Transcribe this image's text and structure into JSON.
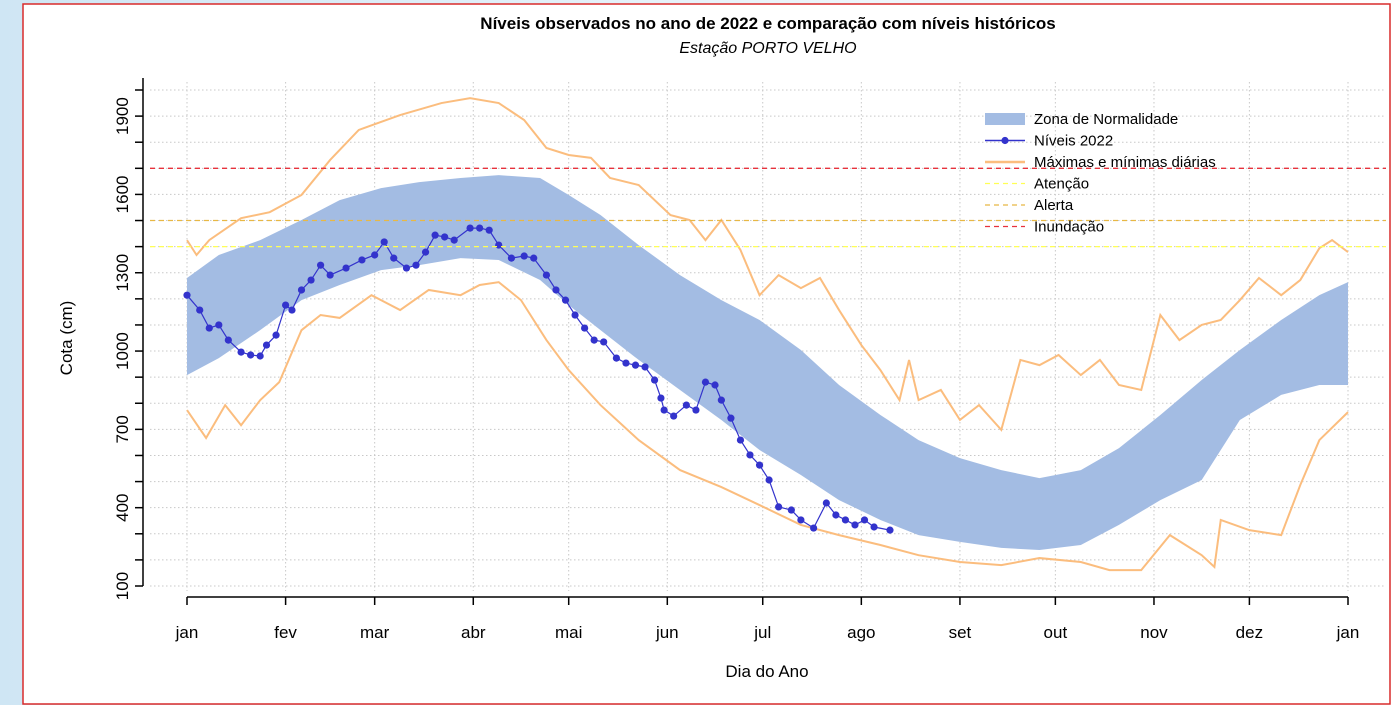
{
  "chart_data": {
    "type": "line",
    "title": "Níveis observados no ano de 2022 e comparação com níveis históricos",
    "subtitle": "Estação PORTO VELHO",
    "x_label": "Dia do Ano",
    "y_label": "Cota (cm)",
    "xlim": [
      1,
      366
    ],
    "xticks": [
      {
        "value": 1,
        "label": "jan"
      },
      {
        "value": 32,
        "label": "fev"
      },
      {
        "value": 60,
        "label": "mar"
      },
      {
        "value": 91,
        "label": "abr"
      },
      {
        "value": 121,
        "label": "mai"
      },
      {
        "value": 152,
        "label": "jun"
      },
      {
        "value": 182,
        "label": "jul"
      },
      {
        "value": 213,
        "label": "ago"
      },
      {
        "value": 244,
        "label": "set"
      },
      {
        "value": 274,
        "label": "out"
      },
      {
        "value": 305,
        "label": "nov"
      },
      {
        "value": 335,
        "label": "dez"
      },
      {
        "value": 366,
        "label": "jan"
      }
    ],
    "ylim": [
      100,
      2000
    ],
    "yticks": [
      100,
      400,
      700,
      1000,
      1300,
      1600,
      1900
    ],
    "yminor_ticks": [
      200,
      300,
      500,
      600,
      800,
      900,
      1100,
      1200,
      1400,
      1500,
      1700,
      1800,
      2000
    ],
    "grid": true,
    "legend": "top-right",
    "bands": [
      {
        "name": "Zona de Normalidade",
        "color": "#a3bce3",
        "x": [
          1,
          11,
          24,
          37,
          49,
          62,
          74,
          87,
          99,
          112,
          121,
          131,
          143,
          156,
          169,
          181,
          194,
          206,
          219,
          231,
          244,
          257,
          269,
          282,
          294,
          307,
          320,
          332,
          345,
          357,
          366
        ],
        "lower": [
          908,
          973,
          1080,
          1195,
          1253,
          1310,
          1329,
          1356,
          1349,
          1272,
          1176,
          1080,
          966,
          851,
          736,
          621,
          525,
          429,
          353,
          295,
          269,
          246,
          238,
          257,
          334,
          429,
          506,
          736,
          832,
          870,
          870
        ],
        "upper": [
          1280,
          1368,
          1425,
          1502,
          1578,
          1624,
          1647,
          1663,
          1674,
          1663,
          1598,
          1521,
          1406,
          1291,
          1195,
          1119,
          1004,
          870,
          755,
          659,
          590,
          544,
          513,
          544,
          628,
          755,
          889,
          1004,
          1119,
          1214,
          1264
        ]
      }
    ],
    "series": [
      {
        "name": "Níveis 2022",
        "color": "#3333cc",
        "markers": true,
        "x": [
          1,
          5,
          8,
          11,
          14,
          18,
          21,
          24,
          26,
          29,
          32,
          34,
          37,
          40,
          43,
          46,
          51,
          56,
          60,
          63,
          66,
          70,
          73,
          76,
          79,
          82,
          85,
          90,
          93,
          96,
          99,
          103,
          107,
          110,
          114,
          117,
          120,
          123,
          126,
          129,
          132,
          136,
          139,
          142,
          145,
          148,
          150,
          151,
          154,
          158,
          161,
          164,
          167,
          169,
          172,
          175,
          178,
          181,
          184,
          187,
          191,
          194,
          198,
          202,
          205,
          208,
          211,
          214,
          217,
          222
        ],
        "values": [
          1214,
          1157,
          1088,
          1100,
          1042,
          996,
          985,
          981,
          1023,
          1061,
          1176,
          1157,
          1234,
          1272,
          1329,
          1291,
          1318,
          1349,
          1368,
          1418,
          1356,
          1318,
          1329,
          1379,
          1444,
          1437,
          1425,
          1471,
          1471,
          1463,
          1406,
          1356,
          1364,
          1356,
          1291,
          1234,
          1195,
          1138,
          1088,
          1042,
          1035,
          973,
          954,
          946,
          939,
          889,
          820,
          774,
          751,
          793,
          774,
          881,
          870,
          812,
          743,
          659,
          602,
          563,
          506,
          403,
          391,
          353,
          322,
          418,
          372,
          353,
          334,
          353,
          326,
          314
        ]
      },
      {
        "name": "Máximas e mínimas diárias",
        "color": "#fbbd7e",
        "markers": false,
        "parts": [
          {
            "x": [
              1,
              4,
              8,
              18,
              27,
              37,
              46,
              55,
              68,
              81,
              90,
              99,
              107,
              114,
              121,
              128,
              134,
              143,
              153,
              159,
              164,
              169,
              175,
              181,
              187,
              194,
              200,
              206,
              213,
              219,
              225,
              228,
              231,
              238,
              244,
              250,
              257,
              263,
              269,
              275,
              282,
              288,
              294,
              301,
              307,
              313,
              320,
              326,
              332,
              338,
              345,
              351,
              357,
              361,
              366
            ],
            "values": [
              1425,
              1368,
              1425,
              1509,
              1532,
              1598,
              1732,
              1847,
              1904,
              1950,
              1969,
              1950,
              1885,
              1778,
              1751,
              1740,
              1663,
              1636,
              1521,
              1502,
              1425,
              1502,
              1387,
              1214,
              1291,
              1241,
              1280,
              1157,
              1023,
              927,
              812,
              966,
              812,
              851,
              736,
              793,
              698,
              966,
              946,
              985,
              908,
              966,
              870,
              851,
              1138,
              1042,
              1100,
              1119,
              1195,
              1280,
              1214,
              1272,
              1394,
              1425,
              1379
            ]
          },
          {
            "x": [
              1,
              7,
              13,
              18,
              24,
              30,
              37,
              43,
              49,
              59,
              68,
              77,
              87,
              93,
              99,
              106,
              114,
              121,
              131,
              143,
              156,
              169,
              181,
              194,
              206,
              219,
              231,
              244,
              257,
              269,
              282,
              291,
              301,
              310,
              320,
              324,
              326,
              335,
              345,
              351,
              357,
              366
            ],
            "values": [
              774,
              667,
              793,
              716,
              812,
              881,
              1080,
              1138,
              1127,
              1214,
              1157,
              1234,
              1214,
              1253,
              1264,
              1195,
              1042,
              927,
              793,
              659,
              544,
              479,
              410,
              334,
              295,
              257,
              218,
              192,
              180,
              207,
              192,
              161,
              161,
              295,
              218,
              173,
              353,
              314,
              295,
              487,
              659,
              766
            ]
          }
        ]
      }
    ],
    "hlines": [
      {
        "name": "Atenção",
        "value": 1400,
        "color": "#ffff55"
      },
      {
        "name": "Alerta",
        "value": 1500,
        "color": "#e8b844"
      },
      {
        "name": "Inundação",
        "value": 1700,
        "color": "#e8323c"
      }
    ]
  }
}
